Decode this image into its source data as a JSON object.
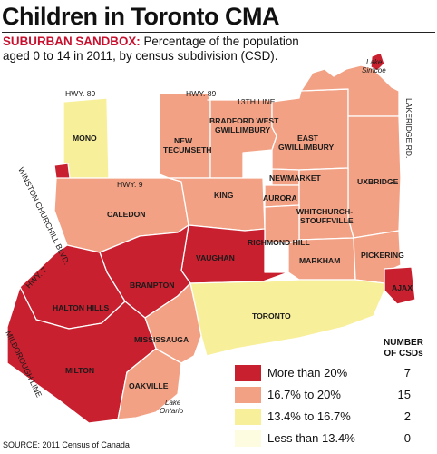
{
  "title": "Children in Toronto CMA",
  "subtitle": {
    "kicker": "SUBURBAN SANDBOX:",
    "text": " Percentage of the population aged 0 to 14 in 2011, by census subdivision (CSD)."
  },
  "source": "SOURCE: 2011 Census of Canada",
  "colors": {
    "red": "#c8202f",
    "salmon": "#f2a184",
    "yellow": "#f8ef9a",
    "pale": "#fdfbe0"
  },
  "roads": {
    "hwy89_west": "HWY. 89",
    "hwy89_east": "HWY. 89",
    "line13": "13TH LINE",
    "hwy9": "HWY. 9",
    "hwy7": "HWY. 7",
    "winston": "WINSTON CHURCHILL BLVD.",
    "milborough": "MILBOROUGH LINE",
    "lakeridge": "LAKERIDGE RD."
  },
  "water": {
    "simcoe_1": "Lake",
    "simcoe_2": "Simcoe",
    "ontario_1": "Lake",
    "ontario_2": "Ontario"
  },
  "municipalities": {
    "mono": "MONO",
    "bradford_1": "BRADFORD WEST",
    "bradford_2": "GWILLIMBURY",
    "new_tecumseth_1": "NEW",
    "new_tecumseth_2": "TECUMSETH",
    "east_gwillimbury_1": "EAST",
    "east_gwillimbury_2": "GWILLIMBURY",
    "newmarket": "NEWMARKET",
    "uxbridge": "UXBRIDGE",
    "king": "KING",
    "aurora": "AURORA",
    "whitchurch_1": "WHITCHURCH-",
    "whitchurch_2": "STOUFFVILLE",
    "caledon": "CALEDON",
    "richmond_hill": "RICHMOND HILL",
    "vaughan": "VAUGHAN",
    "markham": "MARKHAM",
    "pickering": "PICKERING",
    "ajax": "AJAX",
    "brampton": "BRAMPTON",
    "halton_hills": "HALTON HILLS",
    "toronto": "TORONTO",
    "mississauga": "MISSISSAUGA",
    "milton": "MILTON",
    "oakville": "OAKVILLE"
  },
  "legend": {
    "header_1": "NUMBER",
    "header_2": "OF CSDs",
    "items": [
      {
        "label": "More than 20%",
        "count": "7",
        "color": "#c8202f"
      },
      {
        "label": "16.7% to 20%",
        "count": "15",
        "color": "#f2a184"
      },
      {
        "label": "13.4% to 16.7%",
        "count": "2",
        "color": "#f8ef9a"
      },
      {
        "label": "Less than 13.4%",
        "count": "0",
        "color": "#fdfbe0"
      }
    ]
  }
}
